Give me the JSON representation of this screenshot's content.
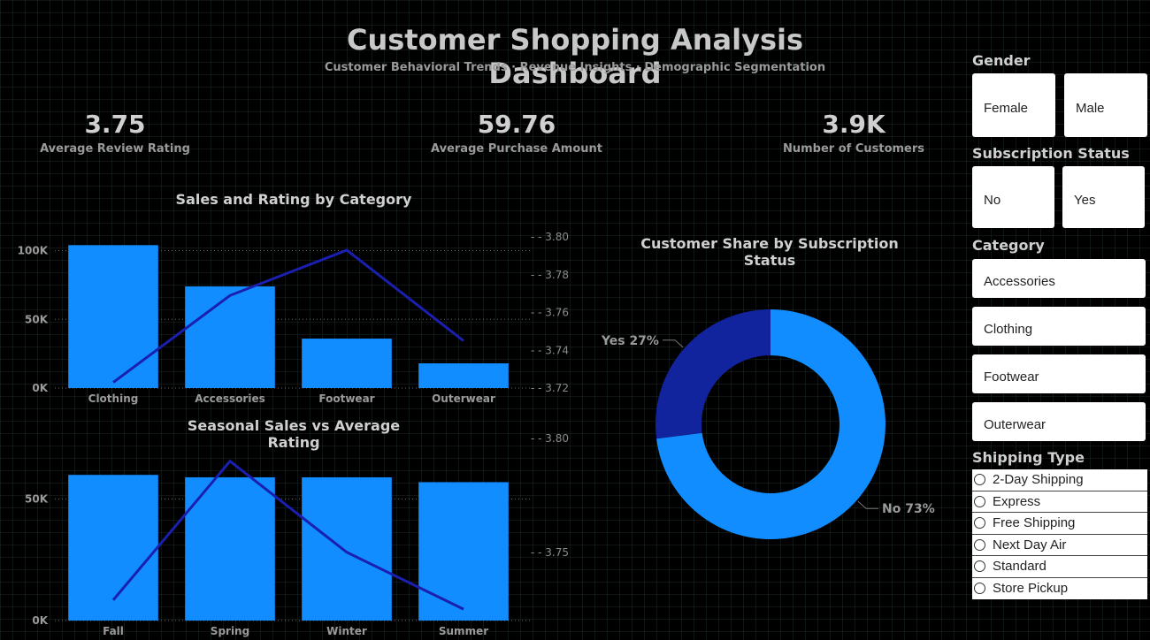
{
  "header": {
    "title": "Customer Shopping Analysis Dashboard",
    "subtitle": "Customer Behavioral Trends · Revenue Insights · Demographic Segmentation"
  },
  "kpis": [
    {
      "value": "3.75",
      "label": "Average Review Rating"
    },
    {
      "value": "59.76",
      "label": "Average Purchase Amount"
    },
    {
      "value": "3.9K",
      "label": "Number of Customers"
    }
  ],
  "colors": {
    "bar": "#118DFF",
    "line": "#1A1FB0",
    "donut_yes": "#12239E",
    "donut_no": "#118DFF"
  },
  "chart_data": [
    {
      "type": "bar",
      "title": "Sales and Rating by Category",
      "categories": [
        "Clothing",
        "Accessories",
        "Footwear",
        "Outerwear"
      ],
      "series": [
        {
          "values": [
            104000,
            74000,
            36000,
            18000
          ]
        },
        {
          "values": [
            3.723,
            3.769,
            3.793,
            3.745
          ]
        }
      ],
      "ylim": [
        0,
        110000
      ],
      "y2lim": [
        3.72,
        3.8
      ],
      "yticks": [
        "0K",
        "50K",
        "100K"
      ],
      "y2ticks": [
        "3.72",
        "3.74",
        "3.76",
        "3.78",
        "3.80"
      ]
    },
    {
      "type": "bar",
      "title": "Seasonal Sales vs Average Rating",
      "categories": [
        "Fall",
        "Spring",
        "Winter",
        "Summer"
      ],
      "series": [
        {
          "values": [
            60000,
            59000,
            59000,
            57000
          ]
        },
        {
          "values": [
            3.729,
            3.79,
            3.75,
            3.725
          ]
        }
      ],
      "ylim": [
        0,
        75000
      ],
      "y2lim": [
        3.72,
        3.8
      ],
      "yticks": [
        "0K",
        "50K"
      ],
      "y2ticks": [
        "3.75",
        "3.80"
      ]
    },
    {
      "type": "pie",
      "title": "Customer Share by Subscription Status",
      "categories": [
        "No",
        "Yes"
      ],
      "values": [
        73,
        27
      ],
      "labels": [
        "No 73%",
        "Yes 27%"
      ]
    }
  ],
  "slicers": {
    "gender": {
      "title": "Gender",
      "options": [
        "Female",
        "Male"
      ]
    },
    "subscription": {
      "title": "Subscription Status",
      "options": [
        "No",
        "Yes"
      ]
    },
    "category": {
      "title": "Category",
      "options": [
        "Accessories",
        "Clothing",
        "Footwear",
        "Outerwear"
      ]
    },
    "shipping": {
      "title": "Shipping Type",
      "options": [
        "2-Day Shipping",
        "Express",
        "Free Shipping",
        "Next Day Air",
        "Standard",
        "Store Pickup"
      ]
    }
  }
}
